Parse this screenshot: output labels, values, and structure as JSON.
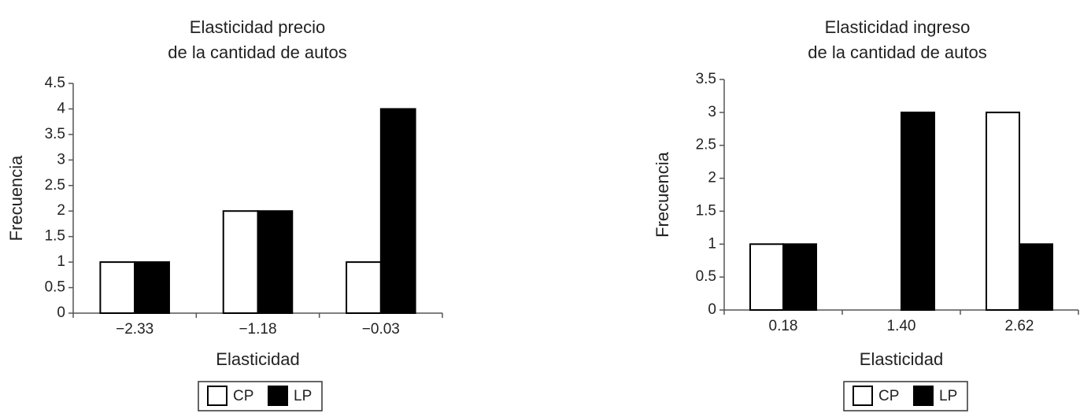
{
  "chart_data": [
    {
      "type": "bar",
      "title": [
        "Elasticidad precio",
        "de la cantidad de autos"
      ],
      "x_label": "Elasticidad",
      "y_label": "Frecuencia",
      "categories": [
        "−2.33",
        "−1.18",
        "−0.03"
      ],
      "series": [
        {
          "name": "CP",
          "color": "#ffffff",
          "values": [
            1,
            2,
            1
          ]
        },
        {
          "name": "LP",
          "color": "#000000",
          "values": [
            1,
            2,
            4
          ]
        }
      ],
      "ylim": [
        0,
        4.5
      ],
      "yticks": [
        0,
        0.5,
        1,
        1.5,
        2,
        2.5,
        3,
        3.5,
        4,
        4.5
      ]
    },
    {
      "type": "bar",
      "title": [
        "Elasticidad ingreso",
        "de la cantidad de autos"
      ],
      "x_label": "Elasticidad",
      "y_label": "Frecuencia",
      "categories": [
        "0.18",
        "1.40",
        "2.62"
      ],
      "series": [
        {
          "name": "CP",
          "color": "#ffffff",
          "values": [
            1,
            0,
            3
          ]
        },
        {
          "name": "LP",
          "color": "#000000",
          "values": [
            1,
            3,
            1
          ]
        }
      ],
      "ylim": [
        0,
        3.5
      ],
      "yticks": [
        0,
        0.5,
        1,
        1.5,
        2,
        2.5,
        3,
        3.5
      ]
    }
  ]
}
